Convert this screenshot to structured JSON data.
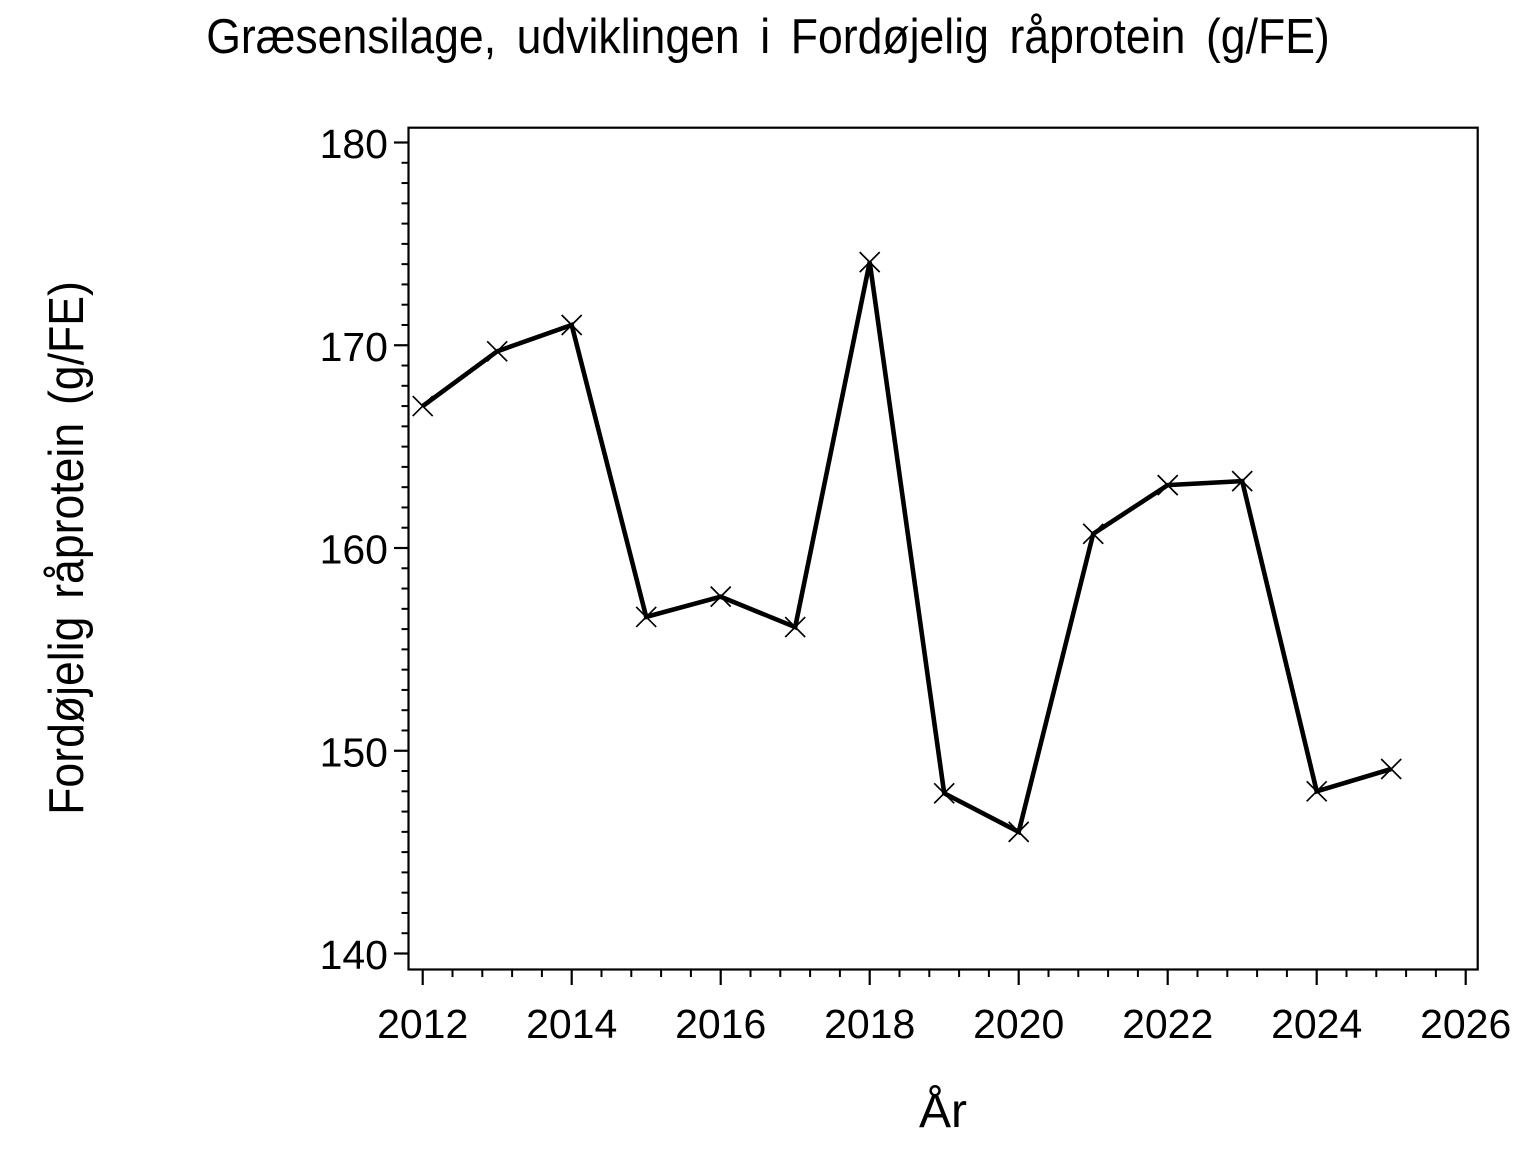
{
  "chart_data": {
    "type": "line",
    "title": "Græsensilage, udviklingen i Fordøjelig råprotein (g/FE)",
    "xlabel": "År",
    "ylabel": "Fordøjelig råprotein (g/FE)",
    "x": [
      2012,
      2013,
      2014,
      2015,
      2016,
      2017,
      2018,
      2019,
      2020,
      2021,
      2022,
      2023,
      2024,
      2025
    ],
    "values": [
      167.0,
      169.7,
      171.0,
      156.6,
      157.6,
      156.1,
      174.1,
      147.9,
      146.0,
      160.7,
      163.1,
      163.3,
      148.0,
      149.1
    ],
    "marker": "x-cross",
    "line_color": "#000000",
    "marker_color": "#000000",
    "background_color": "#FFFFFF",
    "xlim": [
      2011.81,
      2026.16
    ],
    "ylim": [
      139.2,
      180.75
    ],
    "x_major_ticks": [
      2012,
      2014,
      2016,
      2018,
      2020,
      2022,
      2024,
      2026
    ],
    "x_minor_step": 0.4,
    "y_major_ticks": [
      140,
      150,
      160,
      170,
      180
    ],
    "y_minor_step": 1,
    "grid": false,
    "legend": "none"
  }
}
